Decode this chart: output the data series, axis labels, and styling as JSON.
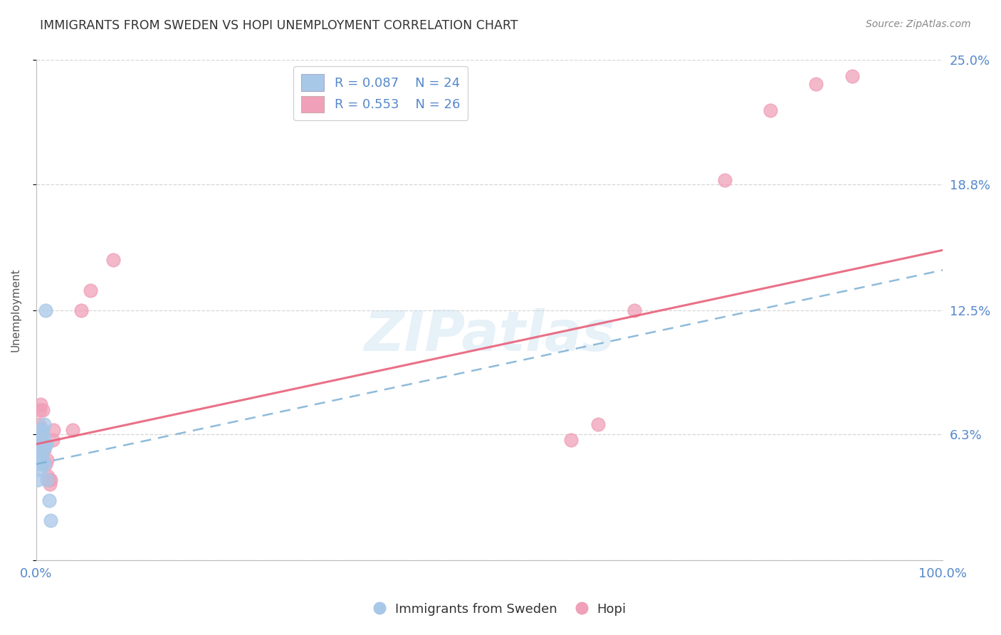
{
  "title": "IMMIGRANTS FROM SWEDEN VS HOPI UNEMPLOYMENT CORRELATION CHART",
  "source": "Source: ZipAtlas.com",
  "ylabel": "Unemployment",
  "xlim": [
    0.0,
    1.0
  ],
  "ylim": [
    0.0,
    0.25
  ],
  "ytick_positions": [
    0.0,
    0.063,
    0.125,
    0.188,
    0.25
  ],
  "ytick_labels": [
    "",
    "6.3%",
    "12.5%",
    "18.8%",
    "25.0%"
  ],
  "xtick_positions": [
    0.0,
    0.25,
    0.5,
    0.75,
    1.0
  ],
  "xtick_labels": [
    "0.0%",
    "",
    "",
    "",
    "100.0%"
  ],
  "legend_r_blue": "R = 0.087",
  "legend_n_blue": "N = 24",
  "legend_r_pink": "R = 0.553",
  "legend_n_pink": "N = 26",
  "blue_scatter_x": [
    0.002,
    0.003,
    0.003,
    0.004,
    0.004,
    0.005,
    0.005,
    0.005,
    0.006,
    0.006,
    0.006,
    0.007,
    0.007,
    0.007,
    0.008,
    0.008,
    0.009,
    0.009,
    0.01,
    0.01,
    0.011,
    0.012,
    0.014,
    0.016
  ],
  "blue_scatter_y": [
    0.04,
    0.05,
    0.055,
    0.048,
    0.058,
    0.045,
    0.06,
    0.065,
    0.052,
    0.058,
    0.063,
    0.05,
    0.058,
    0.065,
    0.055,
    0.062,
    0.048,
    0.068,
    0.058,
    0.125,
    0.058,
    0.04,
    0.03,
    0.02
  ],
  "pink_scatter_x": [
    0.003,
    0.004,
    0.005,
    0.006,
    0.007,
    0.008,
    0.009,
    0.01,
    0.012,
    0.013,
    0.014,
    0.015,
    0.016,
    0.018,
    0.019,
    0.04,
    0.05,
    0.06,
    0.085,
    0.59,
    0.62,
    0.66,
    0.76,
    0.81,
    0.86,
    0.9
  ],
  "pink_scatter_y": [
    0.068,
    0.075,
    0.078,
    0.065,
    0.075,
    0.058,
    0.055,
    0.048,
    0.05,
    0.042,
    0.04,
    0.038,
    0.04,
    0.06,
    0.065,
    0.065,
    0.125,
    0.135,
    0.15,
    0.06,
    0.068,
    0.125,
    0.19,
    0.225,
    0.238,
    0.242
  ],
  "blue_line_x": [
    0.0,
    1.0
  ],
  "blue_line_y": [
    0.048,
    0.145
  ],
  "pink_line_x": [
    0.0,
    1.0
  ],
  "pink_line_y": [
    0.058,
    0.155
  ],
  "blue_color": "#a8c8e8",
  "pink_color": "#f0a0b8",
  "blue_line_color": "#7bafd4",
  "pink_line_color": "#e8607a",
  "watermark": "ZIPatlas",
  "grid_color": "#cccccc",
  "title_color": "#333333",
  "axis_label_color": "#555555",
  "tick_label_color": "#5588cc",
  "bottom_legend_label_color": "#333333"
}
